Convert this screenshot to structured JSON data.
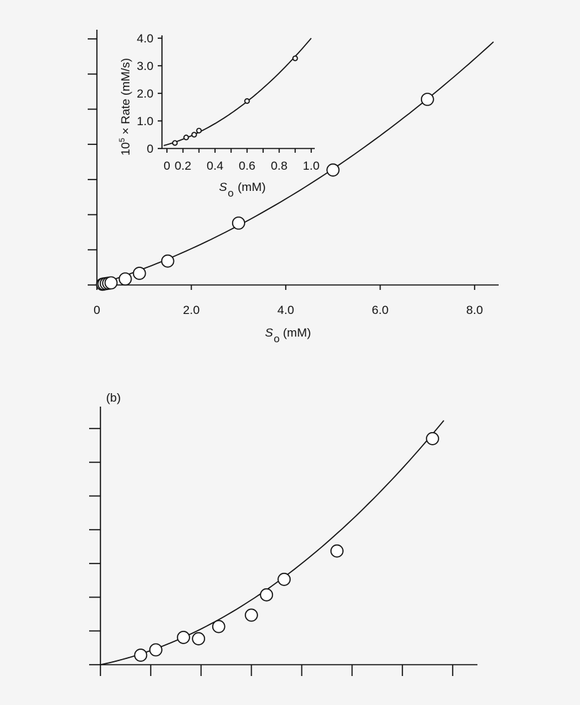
{
  "chart_data": [
    {
      "id": "a_main",
      "type": "scatter",
      "xlabel_main": "S",
      "xlabel_sub": "o",
      "xlabel_unit": "(mM)",
      "xlim": [
        0,
        8.5
      ],
      "ylim": [
        0,
        7.2
      ],
      "x_ticks": [
        0,
        2.0,
        4.0,
        6.0,
        8.0
      ],
      "x_tick_labels": [
        "0",
        "2.0",
        "4.0",
        "6.0",
        "8.0"
      ],
      "y_ticks": [
        0,
        1,
        2,
        3,
        4,
        5,
        6,
        7
      ],
      "points": [
        {
          "x": 0.12,
          "y": 0.02
        },
        {
          "x": 0.15,
          "y": 0.03
        },
        {
          "x": 0.2,
          "y": 0.04
        },
        {
          "x": 0.25,
          "y": 0.05
        },
        {
          "x": 0.3,
          "y": 0.06
        },
        {
          "x": 0.6,
          "y": 0.17
        },
        {
          "x": 0.9,
          "y": 0.33
        },
        {
          "x": 1.5,
          "y": 0.68
        },
        {
          "x": 3.0,
          "y": 1.76
        },
        {
          "x": 5.0,
          "y": 3.27
        },
        {
          "x": 7.0,
          "y": 5.28
        }
      ]
    },
    {
      "id": "a_inset",
      "type": "scatter",
      "xlabel_main": "S",
      "xlabel_sub": "o",
      "xlabel_unit": "(mM)",
      "ylabel_pre": "10",
      "ylabel_sup": "5",
      "ylabel_post": " × Rate (mM/s)",
      "xlim": [
        0.05,
        1.0
      ],
      "ylim": [
        0,
        4.0
      ],
      "x_ticks": [
        0.1,
        0.2,
        0.3,
        0.4,
        0.5,
        0.6,
        0.7,
        0.8,
        0.9,
        1.0
      ],
      "x_tick_labels": [
        "0",
        "0.2",
        "0.4",
        "0.6",
        "0.8",
        "1.0"
      ],
      "x_tick_label_values": [
        0.1,
        0.2,
        0.4,
        0.6,
        0.8,
        1.0
      ],
      "y_ticks": [
        0,
        1.0,
        2.0,
        3.0,
        4.0
      ],
      "y_tick_labels": [
        "0",
        "1.0",
        "2.0",
        "3.0",
        "4.0"
      ],
      "points": [
        {
          "x": 0.15,
          "y": 0.2
        },
        {
          "x": 0.22,
          "y": 0.4
        },
        {
          "x": 0.27,
          "y": 0.5
        },
        {
          "x": 0.3,
          "y": 0.65
        },
        {
          "x": 0.6,
          "y": 1.72
        },
        {
          "x": 0.9,
          "y": 3.27
        }
      ]
    },
    {
      "id": "b",
      "type": "scatter",
      "panel_label": "(b)",
      "xlim": [
        0,
        7.5
      ],
      "ylim": [
        0,
        7.0
      ],
      "x_ticks": [
        0,
        1,
        2,
        3,
        4,
        5,
        6,
        7
      ],
      "y_ticks": [
        0,
        1,
        2,
        3,
        4,
        5,
        6,
        7
      ],
      "points": [
        {
          "x": 0.8,
          "y": 0.28
        },
        {
          "x": 1.1,
          "y": 0.44
        },
        {
          "x": 1.65,
          "y": 0.81
        },
        {
          "x": 1.95,
          "y": 0.77
        },
        {
          "x": 2.35,
          "y": 1.13
        },
        {
          "x": 3.0,
          "y": 1.47
        },
        {
          "x": 3.3,
          "y": 2.07
        },
        {
          "x": 3.65,
          "y": 2.53
        },
        {
          "x": 4.7,
          "y": 3.37
        },
        {
          "x": 6.6,
          "y": 6.7
        }
      ]
    }
  ]
}
